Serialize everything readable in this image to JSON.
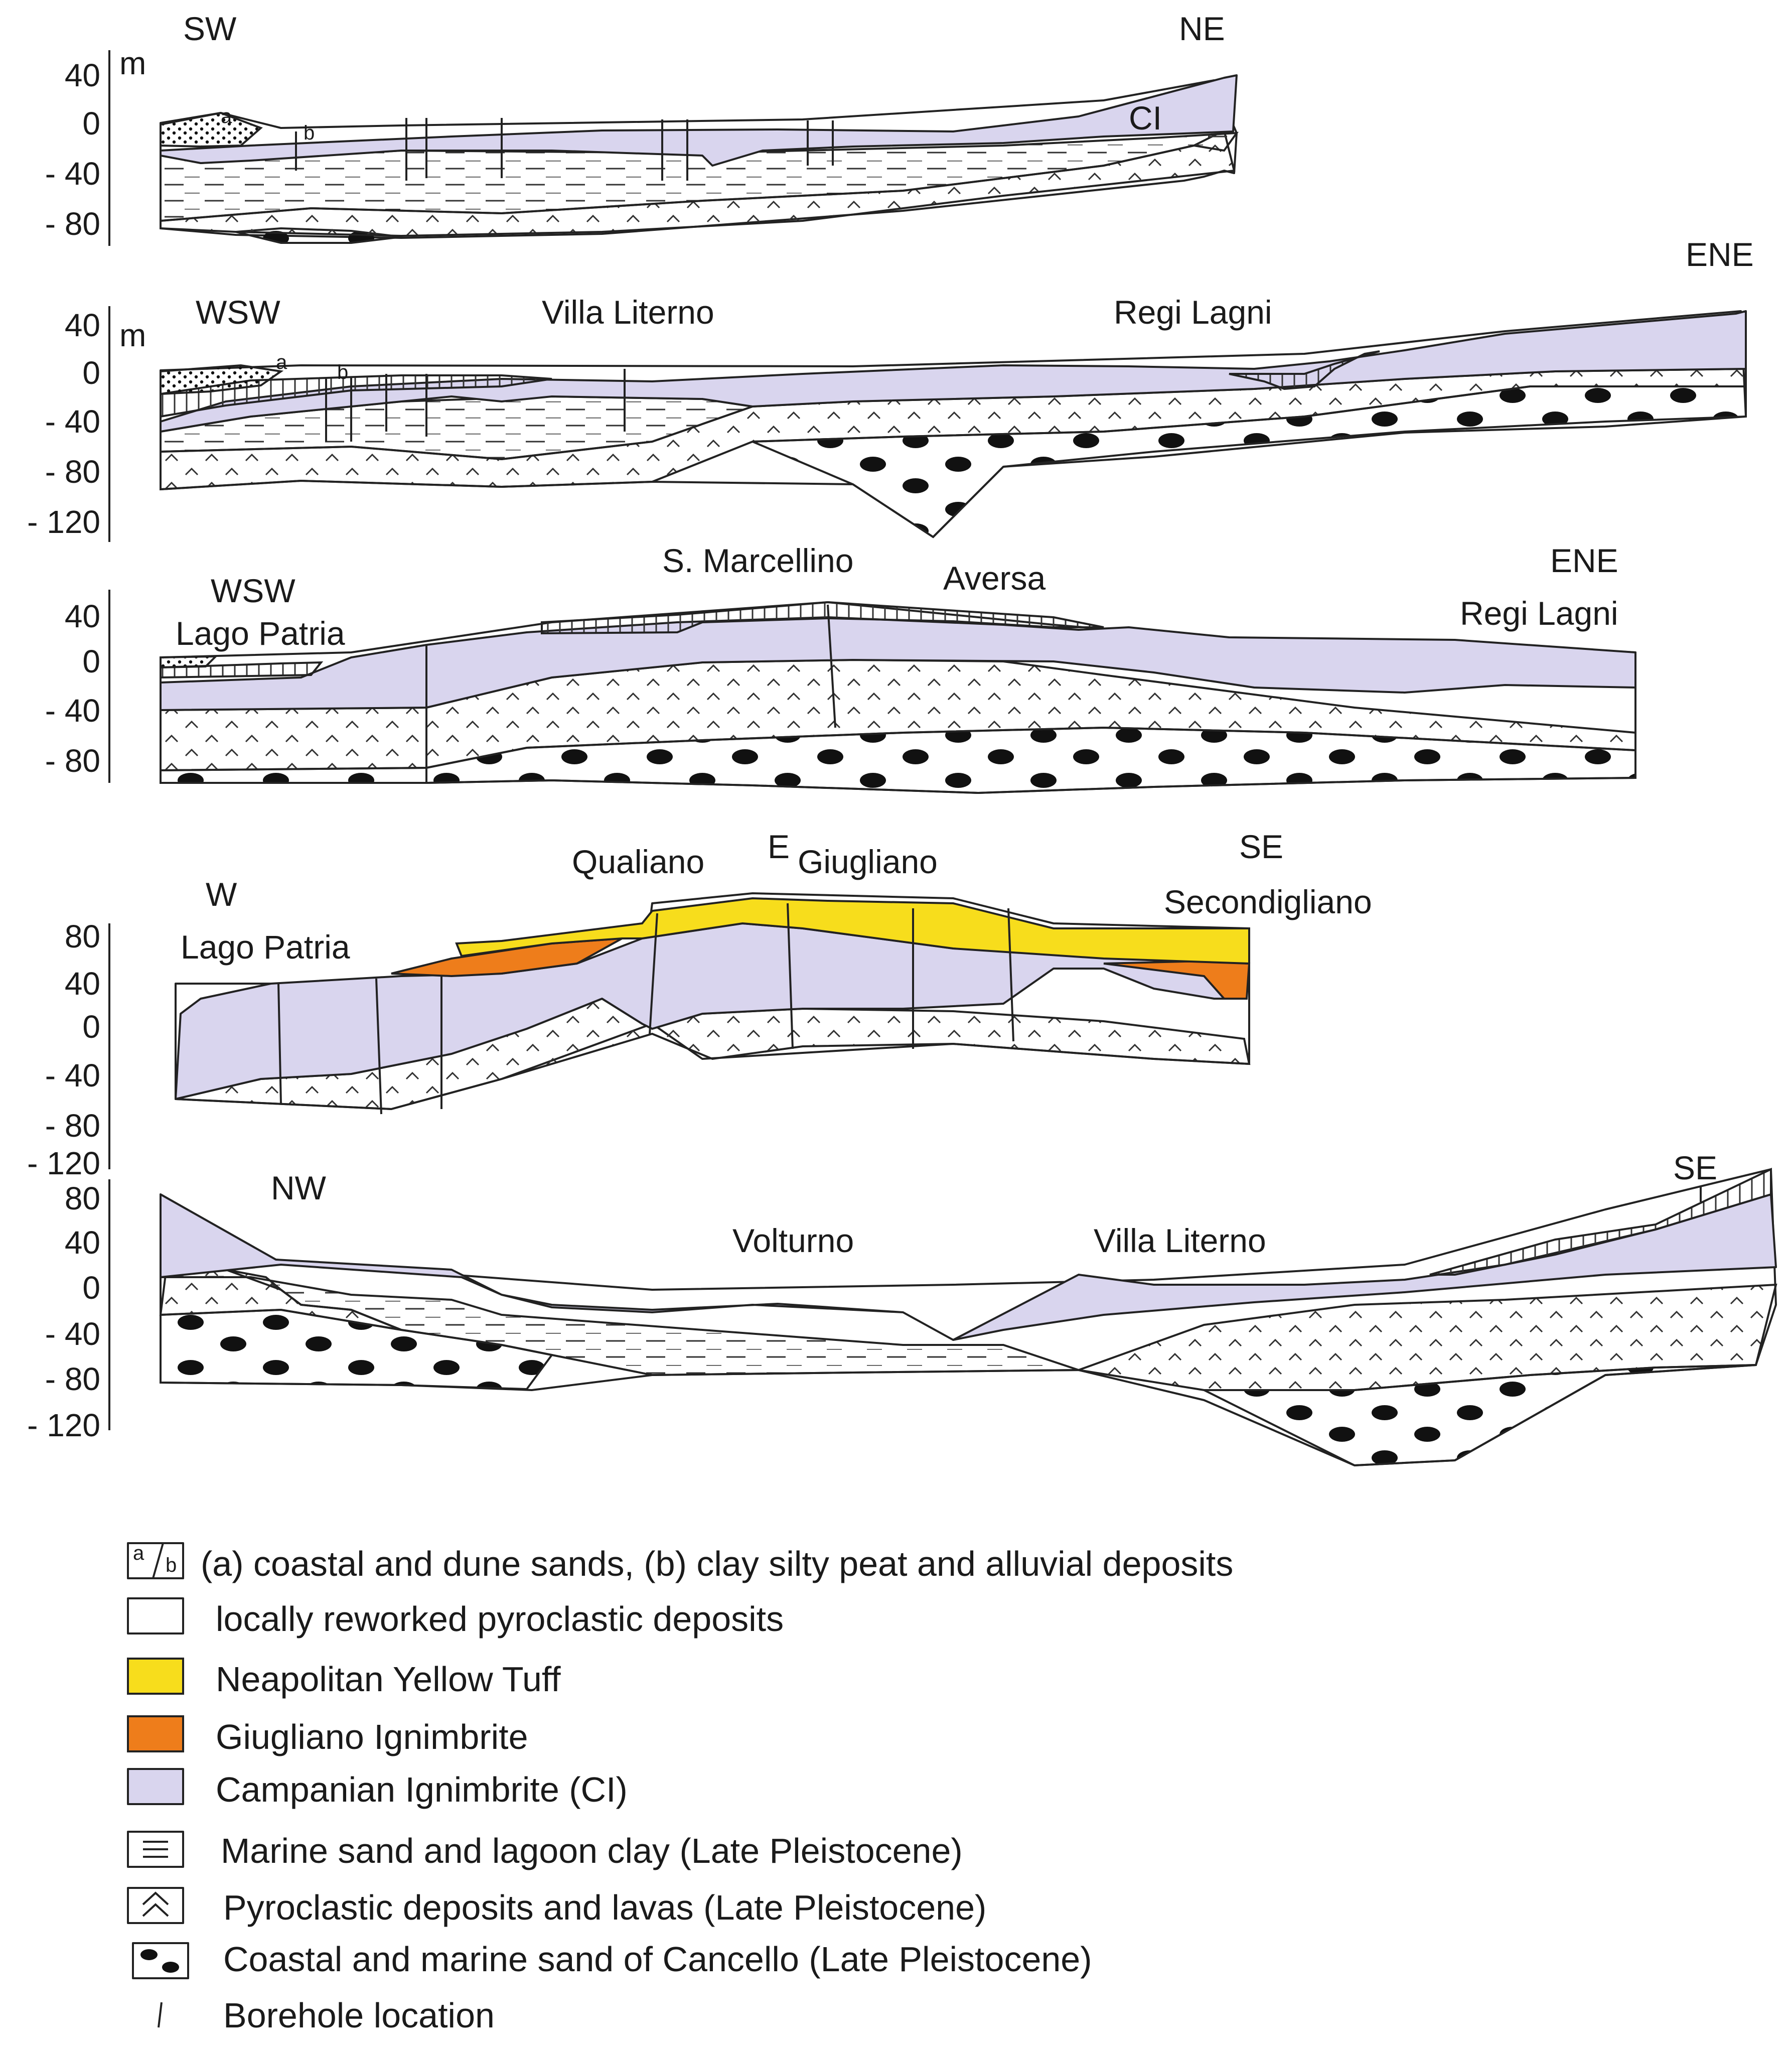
{
  "colors": {
    "campanian": "#d9d5ee",
    "neapolitan_yellow": "#f7dd1c",
    "giugliano": "#ee7d1b",
    "outline": "#222222"
  },
  "section1": {
    "dir_left": "SW",
    "dir_right": "NE",
    "unit": "m",
    "ci_label": "CI",
    "label_a": "a",
    "label_b": "b",
    "ticks": [
      "40",
      "0",
      "- 40",
      "- 80"
    ]
  },
  "section2": {
    "dir_left": "WSW",
    "dir_right": "ENE",
    "unit": "m",
    "place1": "Villa Literno",
    "place2": "Regi Lagni",
    "label_a": "a",
    "label_b": "b",
    "ticks": [
      "40",
      "0",
      "- 40",
      "- 80",
      "- 120"
    ]
  },
  "section3": {
    "dir_left": "WSW",
    "place_left": "Lago Patria",
    "place1": "S. Marcellino",
    "place2": "Aversa",
    "dir_right": "ENE",
    "place_right": "Regi Lagni",
    "ticks": [
      "40",
      "0",
      "- 40",
      "- 80"
    ]
  },
  "section4": {
    "dir_left": "W",
    "place_left": "Lago Patria",
    "place1": "Qualiano",
    "dir_mid": "E",
    "place2": "Giugliano",
    "dir_right": "SE",
    "place_right": "Secondigliano",
    "ticks": [
      "80",
      "40",
      "0",
      "- 40",
      "- 80",
      "- 120"
    ]
  },
  "section5": {
    "dir_left": "NW",
    "place1": "Volturno",
    "place2": "Villa Literno",
    "dir_right": "SE",
    "ticks": [
      "80",
      "40",
      "0",
      "- 40",
      "- 80",
      "- 120"
    ]
  },
  "legend": [
    {
      "symbol": "ab",
      "text": "(a) coastal and dune sands, (b) clay silty peat and alluvial deposits"
    },
    {
      "symbol": "white",
      "text": "locally reworked pyroclastic deposits"
    },
    {
      "symbol": "yellow",
      "text": "Neapolitan Yellow Tuff"
    },
    {
      "symbol": "orange",
      "text": "Giugliano Ignimbrite"
    },
    {
      "symbol": "lilac",
      "text": "Campanian Ignimbrite (CI)"
    },
    {
      "symbol": "lines",
      "text": "Marine sand and lagoon clay (Late Pleistocene)"
    },
    {
      "symbol": "chevron",
      "text": "Pyroclastic deposits and lavas (Late Pleistocene)"
    },
    {
      "symbol": "ovals",
      "text": "Coastal and marine sand of Cancello (Late Pleistocene)"
    },
    {
      "symbol": "borehole",
      "text": "Borehole location"
    }
  ],
  "legend_symbol_a": "a",
  "legend_symbol_b": "b"
}
